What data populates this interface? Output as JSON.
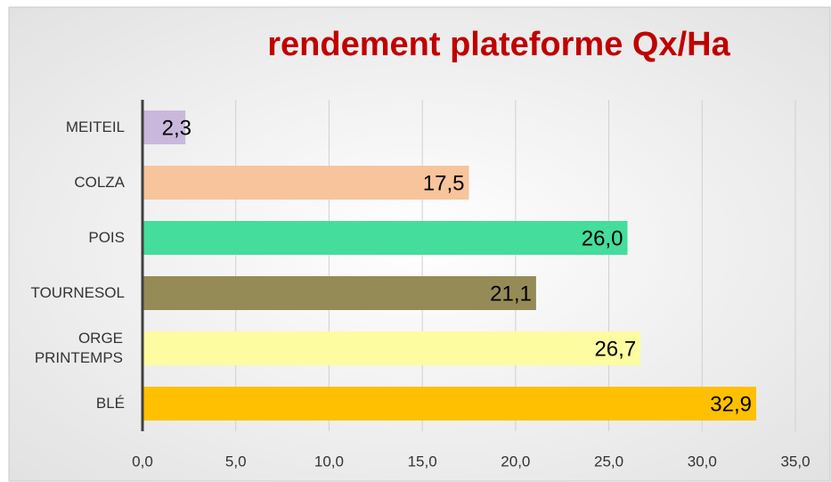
{
  "chart_data": {
    "type": "hbar",
    "title": "rendement plateforme Qx/Ha",
    "categories": [
      "MEITEIL",
      "COLZA",
      "POIS",
      "TOURNESOL",
      "ORGE PRINTEMPS",
      "BLÉ"
    ],
    "values": [
      2.3,
      17.5,
      26.0,
      21.1,
      26.7,
      32.9
    ],
    "value_labels": [
      "2,3",
      "17,5",
      "26,0",
      "21,1",
      "26,7",
      "32,9"
    ],
    "colors": [
      "#c9b8dc",
      "#f8c49c",
      "#44dd9c",
      "#958b57",
      "#fdfca0",
      "#fec000"
    ],
    "xlim": [
      0,
      35
    ],
    "xticks": [
      {
        "value": 0,
        "label": "0,0"
      },
      {
        "value": 5,
        "label": "5,0"
      },
      {
        "value": 10,
        "label": "10,0"
      },
      {
        "value": 15,
        "label": "15,0"
      },
      {
        "value": 20,
        "label": "20,0"
      },
      {
        "value": 25,
        "label": "25,0"
      },
      {
        "value": 30,
        "label": "30,0"
      },
      {
        "value": 35,
        "label": "35,0"
      }
    ],
    "grid": true
  }
}
